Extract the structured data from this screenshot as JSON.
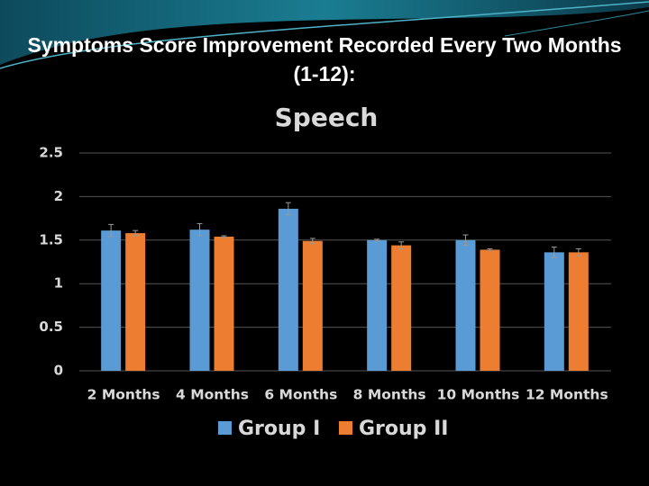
{
  "chart_data": {
    "type": "bar",
    "slide_title": "Symptoms Score Improvement Recorded Every Two Months (1-12):",
    "title": "Speech",
    "categories": [
      "2 Months",
      "4 Months",
      "6 Months",
      "8 Months",
      "10 Months",
      "12 Months"
    ],
    "series": [
      {
        "name": "Group I",
        "color": "#5b9bd5",
        "values": [
          1.61,
          1.62,
          1.86,
          1.5,
          1.5,
          1.36
        ],
        "errors": [
          0.07,
          0.07,
          0.07,
          0.01,
          0.06,
          0.06
        ]
      },
      {
        "name": "Group II",
        "color": "#ed7d31",
        "values": [
          1.58,
          1.54,
          1.49,
          1.44,
          1.39,
          1.36
        ],
        "errors": [
          0.03,
          0.01,
          0.03,
          0.04,
          0.01,
          0.04
        ]
      }
    ],
    "ylim": [
      0,
      2.5
    ],
    "yticks": [
      0,
      0.5,
      1,
      1.5,
      2,
      2.5
    ],
    "grid": true,
    "legend": "bottom"
  }
}
